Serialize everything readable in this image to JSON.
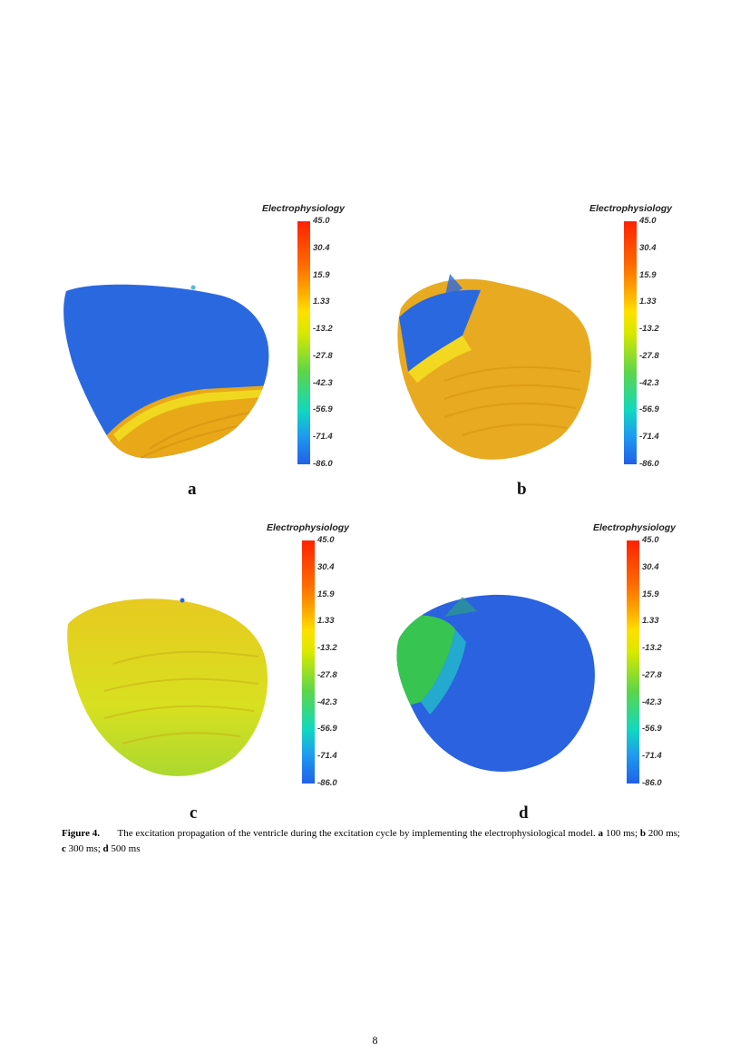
{
  "panels": [
    {
      "id": "a",
      "label": "a",
      "colorbar_title": "Electrophysiology",
      "time": "100 ms"
    },
    {
      "id": "b",
      "label": "b",
      "colorbar_title": "Electrophysiology",
      "time": "200 ms"
    },
    {
      "id": "c",
      "label": "c",
      "colorbar_title": "Electrophysiology",
      "time": "300 ms"
    },
    {
      "id": "d",
      "label": "d",
      "colorbar_title": "Electrophysiology",
      "time": "500 ms"
    }
  ],
  "colorbar": {
    "ticks": [
      "45.0",
      "30.4",
      "15.9",
      "1.33",
      "-13.2",
      "-27.8",
      "-42.3",
      "-56.9",
      "-71.4",
      "-86.0"
    ],
    "range": [
      -86.0,
      45.0
    ],
    "colors": [
      "#ff2200",
      "#ff6a00",
      "#ffb000",
      "#ffe000",
      "#d8e800",
      "#5cd64a",
      "#10d8c0",
      "#1e9cf0",
      "#2060e8"
    ]
  },
  "caption": {
    "figure_number": "Figure 4.",
    "text": "The excitation propagation of the ventricle during the excitation cycle by implementing the electrophysiological model.",
    "items": [
      {
        "key": "a",
        "value": "100 ms;"
      },
      {
        "key": "b",
        "value": "200 ms;"
      },
      {
        "key": "c",
        "value": "300 ms;"
      },
      {
        "key": "d",
        "value": "500 ms"
      }
    ]
  },
  "page_number": "8"
}
